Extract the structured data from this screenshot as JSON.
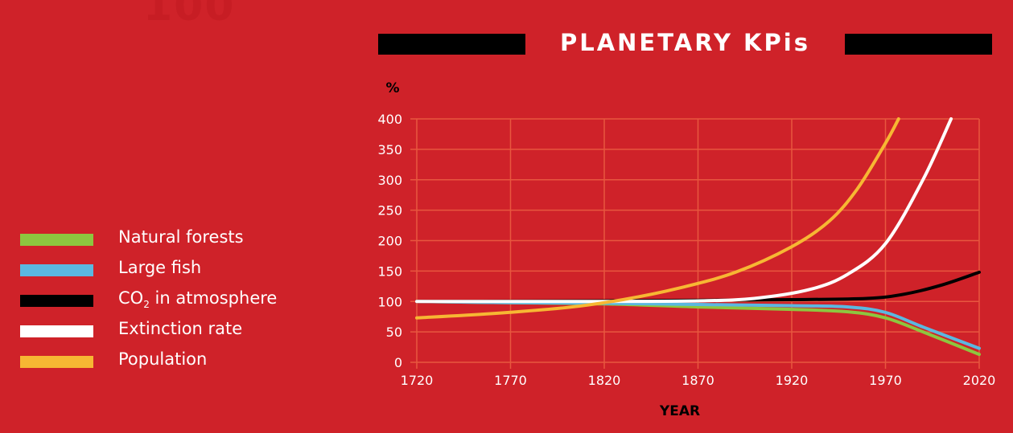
{
  "chart_data": {
    "type": "line",
    "title": "PLANETARY KPis",
    "ylabel": "%",
    "xlabel": "YEAR",
    "xlim": [
      1720,
      2020
    ],
    "ylim": [
      0,
      400
    ],
    "x_ticks": [
      "1720",
      "1770",
      "1820",
      "1870",
      "1920",
      "1970",
      "2020"
    ],
    "y_ticks": [
      "0",
      "50",
      "100",
      "150",
      "200",
      "250",
      "300",
      "350",
      "400"
    ],
    "grid": true,
    "legend_position": "left",
    "series": [
      {
        "name": "Natural forests",
        "color": "#8dc63f",
        "points": [
          [
            1720,
            100
          ],
          [
            1770,
            98
          ],
          [
            1820,
            96
          ],
          [
            1870,
            91
          ],
          [
            1920,
            87
          ],
          [
            1950,
            83
          ],
          [
            1970,
            73
          ],
          [
            1990,
            50
          ],
          [
            2020,
            13
          ]
        ]
      },
      {
        "name": "Large fish",
        "color": "#5bb8e0",
        "points": [
          [
            1720,
            100
          ],
          [
            1770,
            98
          ],
          [
            1820,
            97
          ],
          [
            1870,
            95
          ],
          [
            1920,
            93
          ],
          [
            1950,
            91
          ],
          [
            1970,
            82
          ],
          [
            1990,
            58
          ],
          [
            2020,
            23
          ]
        ]
      },
      {
        "name": "CO2 in atmosphere",
        "color": "#000000",
        "points": [
          [
            1720,
            100
          ],
          [
            1820,
            101
          ],
          [
            1870,
            102
          ],
          [
            1920,
            103
          ],
          [
            1960,
            105
          ],
          [
            1980,
            112
          ],
          [
            2000,
            127
          ],
          [
            2020,
            148
          ]
        ]
      },
      {
        "name": "Extinction rate",
        "color": "#ffffff",
        "points": [
          [
            1720,
            100
          ],
          [
            1770,
            100
          ],
          [
            1820,
            100
          ],
          [
            1870,
            101
          ],
          [
            1900,
            105
          ],
          [
            1930,
            120
          ],
          [
            1950,
            145
          ],
          [
            1970,
            195
          ],
          [
            1990,
            300
          ],
          [
            2005,
            400
          ]
        ]
      },
      {
        "name": "Population",
        "color": "#f7b733",
        "points": [
          [
            1720,
            73
          ],
          [
            1760,
            80
          ],
          [
            1800,
            90
          ],
          [
            1830,
            103
          ],
          [
            1860,
            122
          ],
          [
            1890,
            148
          ],
          [
            1920,
            190
          ],
          [
            1940,
            232
          ],
          [
            1955,
            285
          ],
          [
            1970,
            360
          ],
          [
            1977,
            400
          ]
        ]
      }
    ]
  },
  "legend": {
    "items": [
      {
        "label": "Natural forests",
        "color": "#8dc63f"
      },
      {
        "label": "Large fish",
        "color": "#5bb8e0"
      },
      {
        "label_main": "CO",
        "label_sub": "2",
        "label_rest": " in atmosphere",
        "color": "#000000"
      },
      {
        "label": "Extinction rate",
        "color": "#ffffff"
      },
      {
        "label": "Population",
        "color": "#f7b733"
      }
    ]
  },
  "colors": {
    "background": "#cf2229",
    "grid": "#e8573f",
    "text": "#ffffff"
  },
  "faint_mark": "100"
}
